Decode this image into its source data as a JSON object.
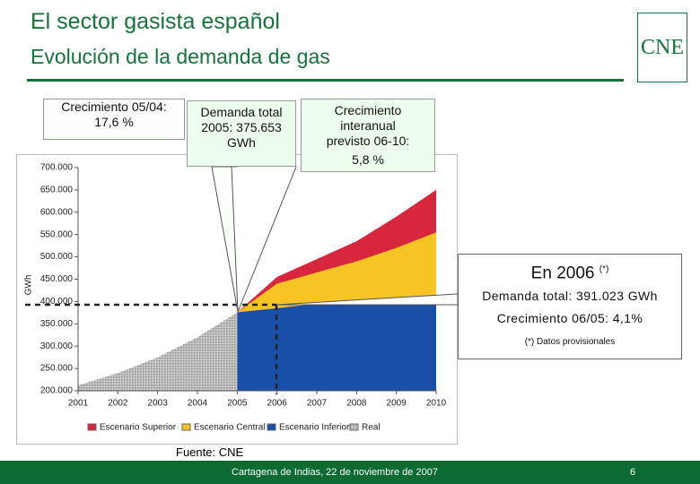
{
  "header": {
    "title": "El sector gasista español",
    "subtitle": "Evolución de la demanda de gas",
    "logo": "CNE"
  },
  "chart_data": {
    "type": "area",
    "y_label": "GWh",
    "categories": [
      "2001",
      "2002",
      "2003",
      "2004",
      "2005",
      "2006",
      "2007",
      "2008",
      "2009",
      "2010"
    ],
    "ylim": [
      200000,
      700000
    ],
    "yticks": [
      {
        "value": 200000,
        "label": "200.000"
      },
      {
        "value": 250000,
        "label": "250.000"
      },
      {
        "value": 300000,
        "label": "300.000"
      },
      {
        "value": 350000,
        "label": "350.000"
      },
      {
        "value": 400000,
        "label": "400.000"
      },
      {
        "value": 450000,
        "label": "450.000"
      },
      {
        "value": 500000,
        "label": "500.000"
      },
      {
        "value": 550000,
        "label": "550.000"
      },
      {
        "value": 600000,
        "label": "600.000"
      },
      {
        "value": 650000,
        "label": "650.000"
      },
      {
        "value": 700000,
        "label": "700.000"
      }
    ],
    "grid": false,
    "series": [
      {
        "name": "Escenario Superior",
        "color": "#d7263d",
        "values": [
          null,
          null,
          null,
          null,
          375653,
          455000,
          495000,
          535000,
          590000,
          650000
        ]
      },
      {
        "name": "Escenario Central",
        "color": "#f7c523",
        "values": [
          null,
          null,
          null,
          null,
          375653,
          440000,
          465000,
          490000,
          520000,
          555000
        ]
      },
      {
        "name": "Escenario Inferior",
        "color": "#1a4fa8",
        "values": [
          null,
          null,
          null,
          null,
          375653,
          385000,
          395000,
          400000,
          405000,
          413000
        ]
      },
      {
        "name": "Real",
        "color": "#a8a8a8",
        "values": [
          212000,
          240000,
          275000,
          320000,
          375653,
          null,
          null,
          null,
          null,
          null
        ]
      }
    ]
  },
  "annotations": {
    "growth_05_04": [
      "Crecimiento 05/04:",
      "17,6 %"
    ],
    "demand_2005": [
      "Demanda total",
      "2005: 375.653",
      "GWh"
    ],
    "growth_forecast": [
      "Crecimiento",
      "interanual",
      "previsto 06-10:",
      "5,8 %"
    ],
    "year_2006": {
      "title": "En 2006",
      "mark": "(*)",
      "lines": [
        "Demanda total: 391.023 GWh",
        "Crecimiento 06/05: 4,1%"
      ],
      "note": "(*) Datos provisionales"
    },
    "source": "Fuente: CNE"
  },
  "footer": {
    "text": "Cartagena de Indias, 22 de noviembre de 2007",
    "page": "6"
  }
}
